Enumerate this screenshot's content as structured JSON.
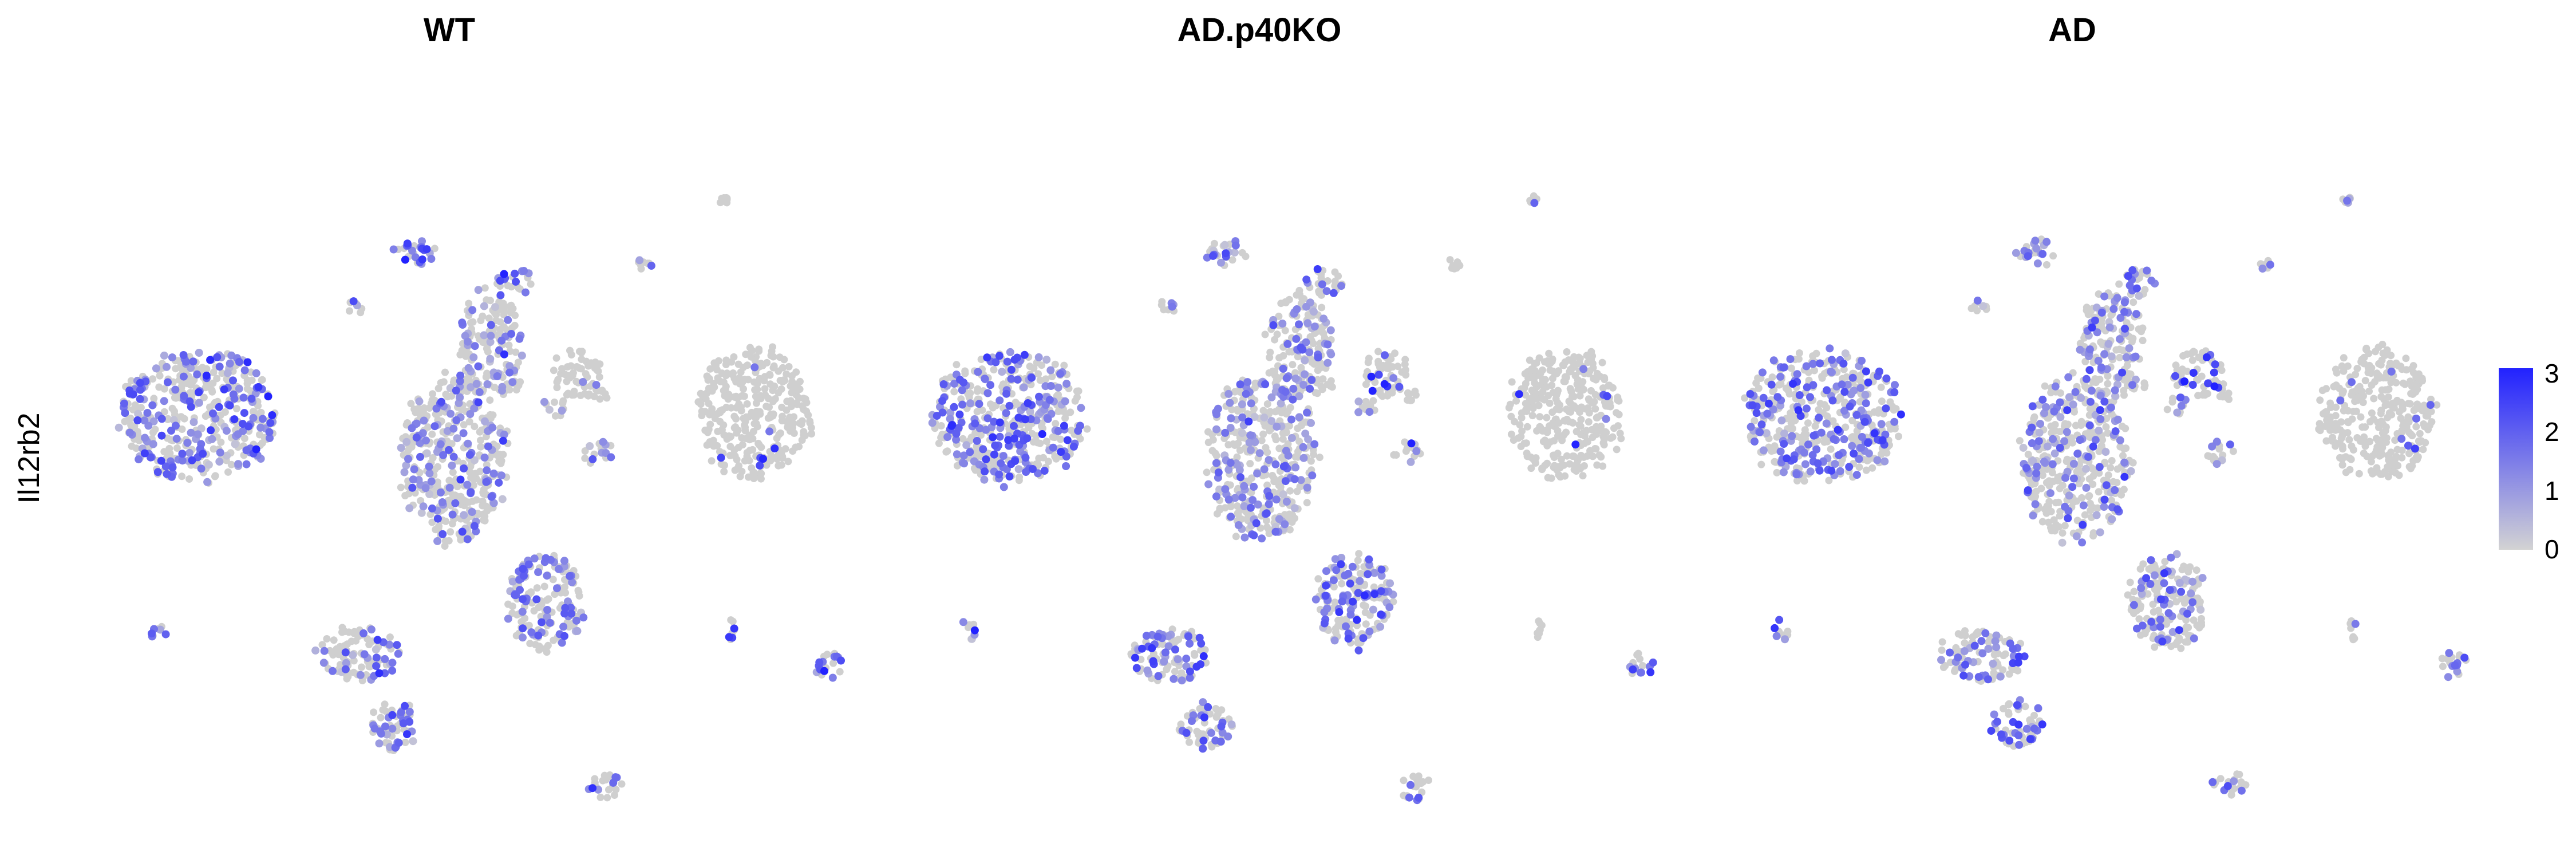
{
  "chart_data": {
    "type": "scatter",
    "plot_kind": "feature-plot (UMAP embedding, cells colored by expression)",
    "feature": "Il12rb2",
    "ylabel": "Il12rb2",
    "xlabel": "",
    "panels": [
      {
        "title": "WT"
      },
      {
        "title": "AD.p40KO"
      },
      {
        "title": "AD"
      }
    ],
    "colorbar": {
      "low_color": "#d3d3d3",
      "high_color": "#2222ff",
      "ticks": [
        "3",
        "2",
        "1",
        "0"
      ],
      "range": [
        0,
        3.1
      ]
    },
    "clusters": [
      {
        "id": "top-big",
        "cx": 0.4,
        "cy": 0.14,
        "rx": 0.085,
        "ry": 0.07,
        "extra": [
          {
            "cx": 0.2,
            "cy": 0.11,
            "rx": 0.03,
            "ry": 0.02
          },
          {
            "cx": 0.48,
            "cy": 0.08,
            "rx": 0.025,
            "ry": 0.02
          }
        ],
        "expr": [
          {
            "frac": 0.03,
            "mean": 2.0
          },
          {
            "frac": 0.2,
            "mean": 2.6
          },
          {
            "frac": 0.2,
            "mean": 2.8
          }
        ]
      },
      {
        "id": "tiny-left-top",
        "cx": -0.31,
        "cy": 0.33,
        "rx": 0.03,
        "ry": 0.02,
        "expr": [
          {
            "frac": 0.3,
            "mean": 1.5
          },
          {
            "frac": 0.3,
            "mean": 1.5
          },
          {
            "frac": 0.3,
            "mean": 1.5
          }
        ]
      },
      {
        "id": "small-upper-left",
        "cx": -0.12,
        "cy": 0.48,
        "rx": 0.07,
        "ry": 0.04,
        "expr": [
          {
            "frac": 0.5,
            "mean": 1.6
          },
          {
            "frac": 0.45,
            "mean": 1.5
          },
          {
            "frac": 0.45,
            "mean": 1.5
          }
        ]
      },
      {
        "id": "left-blob",
        "cx": -0.82,
        "cy": 0.02,
        "rx": 0.26,
        "ry": 0.19,
        "expr": [
          {
            "frac": 0.4,
            "mean": 1.6
          },
          {
            "frac": 0.4,
            "mean": 1.7
          },
          {
            "frac": 0.4,
            "mean": 1.6
          }
        ]
      },
      {
        "id": "central-mass",
        "cx": 0.0,
        "cy": -0.1,
        "rx": 0.18,
        "ry": 0.24,
        "expr": [
          {
            "frac": 0.35,
            "mean": 1.3
          },
          {
            "frac": 0.35,
            "mean": 1.3
          },
          {
            "frac": 0.3,
            "mean": 1.3
          }
        ]
      },
      {
        "id": "central-arm",
        "cx": 0.12,
        "cy": 0.22,
        "rx": 0.11,
        "ry": 0.16,
        "expr": [
          {
            "frac": 0.35,
            "mean": 1.3
          },
          {
            "frac": 0.3,
            "mean": 1.3
          },
          {
            "frac": 0.3,
            "mean": 1.3
          }
        ]
      },
      {
        "id": "upper-right-small",
        "cx": 0.2,
        "cy": 0.4,
        "rx": 0.07,
        "ry": 0.04,
        "expr": [
          {
            "frac": 0.45,
            "mean": 1.6
          },
          {
            "frac": 0.4,
            "mean": 1.5
          },
          {
            "frac": 0.4,
            "mean": 1.5
          }
        ]
      },
      {
        "id": "mid-small-a",
        "cx": 0.33,
        "cy": 0.05,
        "rx": 0.04,
        "ry": 0.03,
        "expr": [
          {
            "frac": 0.35,
            "mean": 1.4
          },
          {
            "frac": 0.3,
            "mean": 1.3
          },
          {
            "frac": 0.3,
            "mean": 1.3
          }
        ]
      },
      {
        "id": "mid-small-b",
        "cx": 0.47,
        "cy": -0.08,
        "rx": 0.05,
        "ry": 0.035,
        "expr": [
          {
            "frac": 0.35,
            "mean": 1.4
          },
          {
            "frac": 0.35,
            "mean": 1.4
          },
          {
            "frac": 0.35,
            "mean": 1.4
          }
        ]
      },
      {
        "id": "right-blob",
        "cx": 0.98,
        "cy": 0.03,
        "rx": 0.19,
        "ry": 0.19,
        "expr": [
          {
            "frac": 0.03,
            "mean": 2.3
          },
          {
            "frac": 0.03,
            "mean": 2.4
          },
          {
            "frac": 0.03,
            "mean": 2.2
          }
        ]
      },
      {
        "id": "mid-lower-cluster",
        "cx": 0.3,
        "cy": -0.5,
        "rx": 0.13,
        "ry": 0.14,
        "expr": [
          {
            "frac": 0.4,
            "mean": 1.4
          },
          {
            "frac": 0.4,
            "mean": 1.4
          },
          {
            "frac": 0.35,
            "mean": 1.4
          }
        ]
      },
      {
        "id": "lower-left-chain",
        "cx": -0.3,
        "cy": -0.65,
        "rx": 0.14,
        "ry": 0.08,
        "expr": [
          {
            "frac": 0.35,
            "mean": 1.6
          },
          {
            "frac": 0.35,
            "mean": 1.6
          },
          {
            "frac": 0.35,
            "mean": 1.6
          }
        ]
      },
      {
        "id": "lower-left-blob",
        "cx": -0.18,
        "cy": -0.85,
        "rx": 0.09,
        "ry": 0.07,
        "expr": [
          {
            "frac": 0.45,
            "mean": 1.6
          },
          {
            "frac": 0.45,
            "mean": 1.6
          },
          {
            "frac": 0.45,
            "mean": 1.7
          }
        ]
      },
      {
        "id": "far-left-small",
        "cx": -0.95,
        "cy": -0.58,
        "rx": 0.03,
        "ry": 0.03,
        "expr": [
          {
            "frac": 0.6,
            "mean": 1.8
          },
          {
            "frac": 0.45,
            "mean": 1.6
          },
          {
            "frac": 0.45,
            "mean": 1.6
          }
        ]
      },
      {
        "id": "right-small-pair",
        "cx": 0.9,
        "cy": -0.58,
        "rx": 0.015,
        "ry": 0.03,
        "expr": [
          {
            "frac": 0.5,
            "mean": 2.4
          },
          {
            "frac": 0.1,
            "mean": 1.5
          },
          {
            "frac": 0.1,
            "mean": 1.5
          }
        ]
      },
      {
        "id": "far-right-small",
        "cx": 1.22,
        "cy": -0.68,
        "rx": 0.05,
        "ry": 0.04,
        "expr": [
          {
            "frac": 0.5,
            "mean": 1.8
          },
          {
            "frac": 0.4,
            "mean": 1.8
          },
          {
            "frac": 0.4,
            "mean": 1.6
          }
        ]
      },
      {
        "id": "bottom-small",
        "cx": 0.5,
        "cy": -1.02,
        "rx": 0.06,
        "ry": 0.04,
        "expr": [
          {
            "frac": 0.25,
            "mean": 1.8
          },
          {
            "frac": 0.2,
            "mean": 1.6
          },
          {
            "frac": 0.2,
            "mean": 1.6
          }
        ]
      },
      {
        "id": "right-top-tiny",
        "cx": 0.62,
        "cy": 0.45,
        "rx": 0.03,
        "ry": 0.015,
        "expr": [
          {
            "frac": 0.05,
            "mean": 1.3
          },
          {
            "frac": 0.05,
            "mean": 1.3
          },
          {
            "frac": 0.05,
            "mean": 1.3
          }
        ]
      },
      {
        "id": "right-top-dot",
        "cx": 0.88,
        "cy": 0.63,
        "rx": 0.015,
        "ry": 0.012,
        "expr": [
          {
            "frac": 0.1,
            "mean": 1.5
          },
          {
            "frac": 0.05,
            "mean": 1.5
          },
          {
            "frac": 0.05,
            "mean": 1.5
          }
        ]
      }
    ]
  }
}
